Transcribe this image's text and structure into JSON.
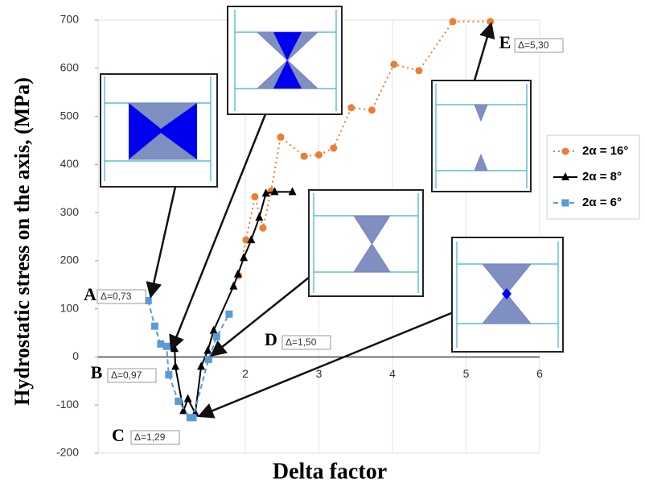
{
  "chart_data": {
    "type": "line",
    "x_label": "Delta factor",
    "y_label": "Hydrostatic stress on the axis, (MPa)",
    "xlim": [
      0,
      6
    ],
    "xticks": [
      2,
      3,
      4,
      5,
      6
    ],
    "ylim": [
      -200,
      700
    ],
    "yticks": [
      -200,
      -100,
      0,
      100,
      200,
      300,
      400,
      500,
      600,
      700
    ],
    "grid": true,
    "legend": "right",
    "series": [
      {
        "name": "2α = 16°",
        "color": "#ed7d31",
        "marker": "circle",
        "dash": "dotted",
        "x": [
          1.91,
          2.01,
          2.13,
          2.24,
          2.35,
          2.48,
          2.8,
          3.0,
          3.2,
          3.44,
          3.72,
          4.02,
          4.36,
          4.82,
          5.33
        ],
        "values": [
          169,
          243,
          333,
          268,
          345,
          457,
          417,
          420,
          434,
          518,
          513,
          608,
          595,
          697,
          697
        ]
      },
      {
        "name": "2α = 8°",
        "color": "#000000",
        "marker": "triangle",
        "dash": "solid",
        "x": [
          1.04,
          1.05,
          1.16,
          1.22,
          1.32,
          1.4,
          1.49,
          1.57,
          1.84,
          1.9,
          1.98,
          2.08,
          2.19,
          2.28,
          2.4,
          2.64
        ],
        "values": [
          17,
          -20,
          -112,
          -87,
          -117,
          -20,
          13,
          55,
          147,
          172,
          206,
          243,
          290,
          340,
          343,
          343
        ]
      },
      {
        "name": "2α = 6°",
        "color": "#5b9bd5",
        "marker": "square",
        "dash": "dashed",
        "x": [
          0.68,
          0.77,
          0.85,
          0.93,
          0.96,
          1.09,
          1.25,
          1.29,
          1.5,
          1.61,
          1.78
        ],
        "values": [
          117,
          64,
          27,
          22,
          -37,
          -92,
          -126,
          -126,
          -5,
          42,
          89
        ]
      }
    ],
    "annotations": [
      {
        "letter": "A",
        "text": "Δ=0,73"
      },
      {
        "letter": "B",
        "text": "Δ=0,97"
      },
      {
        "letter": "C",
        "text": "Δ=1,29"
      },
      {
        "letter": "D",
        "text": "Δ=1,50"
      },
      {
        "letter": "E",
        "text": "Δ=5,30"
      }
    ]
  }
}
